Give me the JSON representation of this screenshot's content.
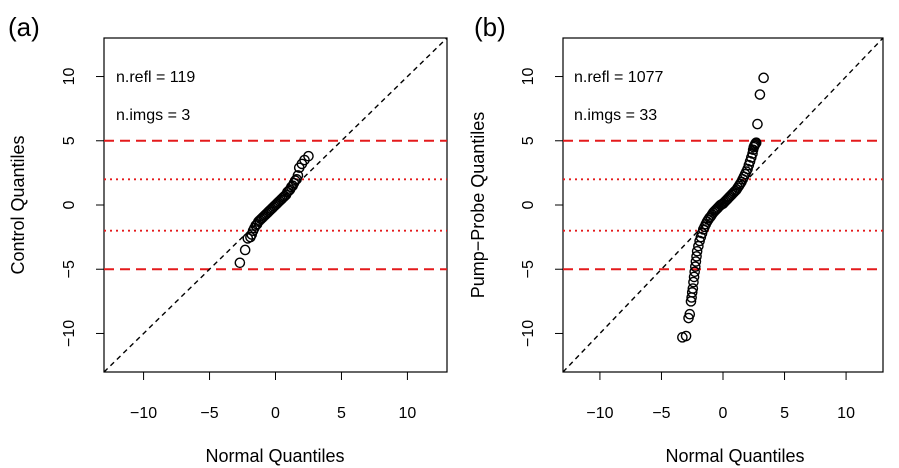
{
  "figure": {
    "panels": [
      {
        "tag": "(a)",
        "annotations": [
          "n.refl = 119",
          "n.imgs = 3"
        ]
      },
      {
        "tag": "(b)",
        "annotations": [
          "n.refl = 1077",
          "n.imgs = 33"
        ]
      }
    ]
  },
  "chart_data": [
    {
      "type": "scatter",
      "panel": "(a)",
      "title": "",
      "xlabel": "Normal Quantiles",
      "ylabel": "Control Quantiles",
      "xlim": [
        -13,
        13
      ],
      "ylim": [
        -13,
        13
      ],
      "xticks": [
        -10,
        -5,
        0,
        5,
        10
      ],
      "yticks": [
        -10,
        -5,
        0,
        5,
        10
      ],
      "grid": false,
      "reference_line": {
        "slope": 1,
        "intercept": 0,
        "style": "dashed",
        "color": "#000000"
      },
      "hlines": [
        {
          "y": 5,
          "style": "dashed",
          "color": "#e41a1c"
        },
        {
          "y": -5,
          "style": "dashed",
          "color": "#e41a1c"
        },
        {
          "y": 2,
          "style": "dotted",
          "color": "#e41a1c"
        },
        {
          "y": -2,
          "style": "dotted",
          "color": "#e41a1c"
        }
      ],
      "annotations": [
        "n.refl = 119",
        "n.imgs = 3"
      ],
      "series": [
        {
          "marker": "open-circle",
          "color": "#000000",
          "x": [
            -2.7,
            -2.3,
            -2.1,
            -1.9,
            -1.8,
            -1.7,
            -1.6,
            -1.5,
            -1.4,
            -1.3,
            -1.2,
            -1.1,
            -1.0,
            -0.9,
            -0.8,
            -0.7,
            -0.6,
            -0.5,
            -0.4,
            -0.3,
            -0.2,
            -0.1,
            0.0,
            0.1,
            0.2,
            0.3,
            0.4,
            0.5,
            0.6,
            0.7,
            0.8,
            0.9,
            1.0,
            1.1,
            1.2,
            1.3,
            1.4,
            1.5,
            1.6,
            1.7,
            1.8,
            2.0,
            2.2,
            2.5
          ],
          "y": [
            -4.5,
            -3.5,
            -2.6,
            -2.5,
            -2.3,
            -2.0,
            -1.8,
            -1.6,
            -1.5,
            -1.3,
            -1.2,
            -1.1,
            -1.0,
            -0.9,
            -0.8,
            -0.7,
            -0.6,
            -0.5,
            -0.4,
            -0.3,
            -0.2,
            -0.1,
            0.0,
            0.1,
            0.2,
            0.3,
            0.4,
            0.5,
            0.6,
            0.7,
            0.8,
            1.0,
            1.1,
            1.2,
            1.4,
            1.5,
            1.7,
            1.9,
            2.0,
            2.3,
            2.9,
            3.2,
            3.5,
            3.8
          ]
        }
      ]
    },
    {
      "type": "scatter",
      "panel": "(b)",
      "title": "",
      "xlabel": "Normal Quantiles",
      "ylabel": "Pump−Probe Quantiles",
      "xlim": [
        -13,
        13
      ],
      "ylim": [
        -13,
        13
      ],
      "xticks": [
        -10,
        -5,
        0,
        5,
        10
      ],
      "yticks": [
        -10,
        -5,
        0,
        5,
        10
      ],
      "grid": false,
      "reference_line": {
        "slope": 1,
        "intercept": 0,
        "style": "dashed",
        "color": "#000000"
      },
      "hlines": [
        {
          "y": 5,
          "style": "dashed",
          "color": "#e41a1c"
        },
        {
          "y": -5,
          "style": "dashed",
          "color": "#e41a1c"
        },
        {
          "y": 2,
          "style": "dotted",
          "color": "#e41a1c"
        },
        {
          "y": -2,
          "style": "dotted",
          "color": "#e41a1c"
        }
      ],
      "annotations": [
        "n.refl = 1077",
        "n.imgs = 33"
      ],
      "series": [
        {
          "marker": "open-circle",
          "color": "#000000",
          "x": [
            -3.3,
            -3.0,
            -2.8,
            -2.7,
            -2.6,
            -2.55,
            -2.5,
            -2.45,
            -2.4,
            -2.35,
            -2.3,
            -2.25,
            -2.2,
            -2.15,
            -2.1,
            -2.0,
            -1.9,
            -1.8,
            -1.7,
            -1.6,
            -1.5,
            -1.4,
            -1.3,
            -1.2,
            -1.1,
            -1.0,
            -0.9,
            -0.8,
            -0.7,
            -0.6,
            -0.5,
            -0.4,
            -0.3,
            -0.2,
            -0.1,
            0.0,
            0.1,
            0.2,
            0.3,
            0.4,
            0.5,
            0.6,
            0.7,
            0.8,
            0.9,
            1.0,
            1.1,
            1.2,
            1.3,
            1.4,
            1.5,
            1.6,
            1.7,
            1.8,
            1.9,
            2.0,
            2.1,
            2.2,
            2.3,
            2.4,
            2.45,
            2.5,
            2.55,
            2.6,
            2.65,
            2.7,
            2.8,
            3.0,
            3.3
          ],
          "y": [
            -10.3,
            -10.2,
            -8.8,
            -8.5,
            -7.5,
            -7.2,
            -6.8,
            -6.5,
            -6.0,
            -5.6,
            -5.2,
            -4.8,
            -4.4,
            -4.0,
            -3.6,
            -3.2,
            -2.8,
            -2.5,
            -2.2,
            -1.9,
            -1.7,
            -1.5,
            -1.3,
            -1.15,
            -1.0,
            -0.9,
            -0.75,
            -0.6,
            -0.5,
            -0.4,
            -0.3,
            -0.2,
            -0.1,
            0.0,
            0.05,
            0.1,
            0.2,
            0.3,
            0.4,
            0.5,
            0.6,
            0.7,
            0.8,
            0.9,
            1.0,
            1.1,
            1.2,
            1.35,
            1.5,
            1.65,
            1.8,
            2.0,
            2.2,
            2.4,
            2.6,
            2.8,
            3.1,
            3.4,
            3.7,
            4.0,
            4.3,
            4.5,
            4.6,
            4.7,
            4.8,
            4.85,
            6.3,
            8.6,
            9.9
          ]
        }
      ]
    }
  ]
}
